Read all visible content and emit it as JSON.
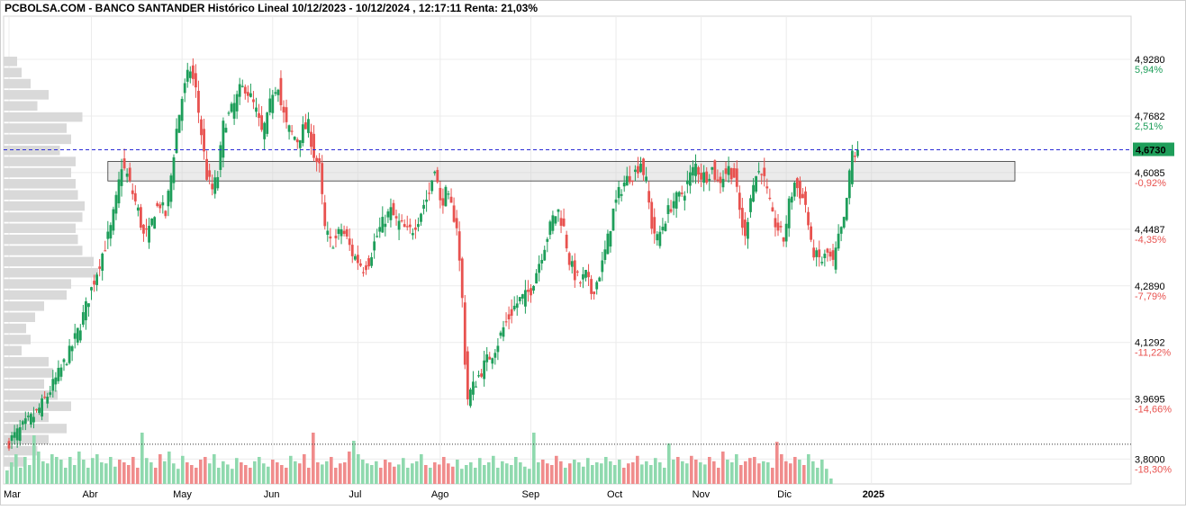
{
  "header": {
    "title": "PCBOLSA.COM - BANCO SANTANDER Histórico Lineal 10/12/2023 - 10/12/2024 , 12:17:11 Renta: 21,03%"
  },
  "colors": {
    "up": "#1e9e5a",
    "down": "#e8524f",
    "vol_up": "#8fd9ae",
    "vol_down": "#f08c8c",
    "profile": "#d9d9d9",
    "grid": "#ececec",
    "current_price_line": "#2a2ad6",
    "current_price_box": "#1e9e5a",
    "pct_up": "#1e9e5a",
    "pct_down": "#e8524f"
  },
  "chart_data": {
    "type": "candlestick",
    "x_axis": {
      "labels": [
        "Mar",
        "Abr",
        "May",
        "Jun",
        "Jul",
        "Ago",
        "Sep",
        "Oct",
        "Nov",
        "Dic",
        "2025"
      ]
    },
    "y_axis": {
      "range": [
        3.73,
        5.05
      ],
      "ticks": [
        {
          "value": 4.928,
          "label": "4,9280",
          "pct": "5,94%",
          "dir": "up"
        },
        {
          "value": 4.7682,
          "label": "4,7682",
          "pct": "2,51%",
          "dir": "up"
        },
        {
          "value": 4.6085,
          "label": "4,6085",
          "pct": "-0,92%",
          "dir": "down"
        },
        {
          "value": 4.4487,
          "label": "4,4487",
          "pct": "-4,35%",
          "dir": "down"
        },
        {
          "value": 4.289,
          "label": "4,2890",
          "pct": "-7,79%",
          "dir": "down"
        },
        {
          "value": 4.1292,
          "label": "4,1292",
          "pct": "-11,22%",
          "dir": "down"
        },
        {
          "value": 3.9695,
          "label": "3,9695",
          "pct": "-14,66%",
          "dir": "down"
        },
        {
          "value": 3.8,
          "label": "3,8000",
          "pct": "-18,30%",
          "dir": "down"
        }
      ]
    },
    "current_price": {
      "value": 4.673,
      "label": "4,6730"
    },
    "support_level": 3.842,
    "resistance_zone": [
      4.585,
      4.64
    ],
    "close_path": [
      [
        0,
        3.85
      ],
      [
        5,
        3.89
      ],
      [
        10,
        3.93
      ],
      [
        14,
        3.98
      ],
      [
        18,
        4.04
      ],
      [
        22,
        4.1
      ],
      [
        26,
        4.18
      ],
      [
        30,
        4.28
      ],
      [
        34,
        4.38
      ],
      [
        37,
        4.45
      ],
      [
        39,
        4.53
      ],
      [
        41,
        4.63
      ],
      [
        43,
        4.6
      ],
      [
        45,
        4.55
      ],
      [
        47,
        4.5
      ],
      [
        49,
        4.43
      ],
      [
        51,
        4.44
      ],
      [
        53,
        4.5
      ],
      [
        55,
        4.52
      ],
      [
        57,
        4.49
      ],
      [
        59,
        4.6
      ],
      [
        61,
        4.73
      ],
      [
        63,
        4.82
      ],
      [
        65,
        4.88
      ],
      [
        66,
        4.9
      ],
      [
        68,
        4.84
      ],
      [
        70,
        4.72
      ],
      [
        72,
        4.6
      ],
      [
        74,
        4.56
      ],
      [
        76,
        4.6
      ],
      [
        78,
        4.74
      ],
      [
        80,
        4.77
      ],
      [
        82,
        4.8
      ],
      [
        84,
        4.84
      ],
      [
        86,
        4.85
      ],
      [
        88,
        4.82
      ],
      [
        90,
        4.78
      ],
      [
        92,
        4.72
      ],
      [
        94,
        4.76
      ],
      [
        96,
        4.84
      ],
      [
        98,
        4.86
      ],
      [
        99,
        4.8
      ],
      [
        101,
        4.74
      ],
      [
        103,
        4.72
      ],
      [
        105,
        4.7
      ],
      [
        107,
        4.73
      ],
      [
        109,
        4.74
      ],
      [
        111,
        4.66
      ],
      [
        113,
        4.62
      ],
      [
        115,
        4.45
      ],
      [
        117,
        4.41
      ],
      [
        119,
        4.42
      ],
      [
        121,
        4.45
      ],
      [
        123,
        4.42
      ],
      [
        125,
        4.38
      ],
      [
        127,
        4.36
      ],
      [
        129,
        4.34
      ],
      [
        131,
        4.36
      ],
      [
        133,
        4.41
      ],
      [
        135,
        4.45
      ],
      [
        137,
        4.48
      ],
      [
        139,
        4.5
      ],
      [
        141,
        4.47
      ],
      [
        143,
        4.46
      ],
      [
        145,
        4.44
      ],
      [
        147,
        4.45
      ],
      [
        149,
        4.48
      ],
      [
        151,
        4.52
      ],
      [
        153,
        4.55
      ],
      [
        155,
        4.63
      ],
      [
        157,
        4.52
      ],
      [
        159,
        4.55
      ],
      [
        161,
        4.51
      ],
      [
        163,
        4.46
      ],
      [
        165,
        4.25
      ],
      [
        166,
        4.08
      ],
      [
        167,
        3.97
      ],
      [
        168,
        3.99
      ],
      [
        170,
        4.02
      ],
      [
        172,
        4.05
      ],
      [
        174,
        4.08
      ],
      [
        176,
        4.1
      ],
      [
        178,
        4.13
      ],
      [
        180,
        4.17
      ],
      [
        182,
        4.2
      ],
      [
        184,
        4.23
      ],
      [
        186,
        4.25
      ],
      [
        188,
        4.26
      ],
      [
        190,
        4.28
      ],
      [
        192,
        4.33
      ],
      [
        194,
        4.38
      ],
      [
        196,
        4.43
      ],
      [
        198,
        4.48
      ],
      [
        200,
        4.5
      ],
      [
        202,
        4.45
      ],
      [
        204,
        4.36
      ],
      [
        206,
        4.32
      ],
      [
        208,
        4.3
      ],
      [
        210,
        4.32
      ],
      [
        212,
        4.27
      ],
      [
        214,
        4.3
      ],
      [
        216,
        4.35
      ],
      [
        218,
        4.42
      ],
      [
        220,
        4.5
      ],
      [
        222,
        4.55
      ],
      [
        224,
        4.58
      ],
      [
        226,
        4.6
      ],
      [
        228,
        4.61
      ],
      [
        230,
        4.64
      ],
      [
        232,
        4.58
      ],
      [
        234,
        4.46
      ],
      [
        236,
        4.42
      ],
      [
        238,
        4.46
      ],
      [
        240,
        4.5
      ],
      [
        242,
        4.53
      ],
      [
        244,
        4.54
      ],
      [
        246,
        4.56
      ],
      [
        248,
        4.6
      ],
      [
        250,
        4.63
      ],
      [
        252,
        4.6
      ],
      [
        254,
        4.6
      ],
      [
        256,
        4.62
      ],
      [
        258,
        4.58
      ],
      [
        260,
        4.6
      ],
      [
        262,
        4.62
      ],
      [
        264,
        4.6
      ],
      [
        266,
        4.5
      ],
      [
        268,
        4.42
      ],
      [
        270,
        4.55
      ],
      [
        272,
        4.6
      ],
      [
        274,
        4.62
      ],
      [
        276,
        4.55
      ],
      [
        278,
        4.48
      ],
      [
        280,
        4.45
      ],
      [
        282,
        4.42
      ],
      [
        284,
        4.52
      ],
      [
        286,
        4.58
      ],
      [
        288,
        4.55
      ],
      [
        290,
        4.52
      ],
      [
        292,
        4.4
      ],
      [
        294,
        4.37
      ],
      [
        296,
        4.36
      ],
      [
        298,
        4.38
      ],
      [
        300,
        4.35
      ],
      [
        302,
        4.42
      ],
      [
        304,
        4.47
      ],
      [
        306,
        4.6
      ],
      [
        307,
        4.665
      ],
      [
        308,
        4.655
      ],
      [
        309,
        4.673
      ]
    ],
    "volume_profile": [
      0.06,
      0.08,
      0.12,
      0.2,
      0.15,
      0.35,
      0.28,
      0.3,
      0.25,
      0.32,
      0.3,
      0.32,
      0.33,
      0.36,
      0.35,
      0.32,
      0.33,
      0.35,
      0.4,
      0.42,
      0.3,
      0.28,
      0.18,
      0.14,
      0.1,
      0.12,
      0.08,
      0.2,
      0.22,
      0.18,
      0.24,
      0.3,
      0.2,
      0.28,
      0.2,
      0.15,
      0.1
    ]
  },
  "volume_bars": [
    0.25,
    0.4,
    0.55,
    0.3,
    0.5,
    0.35,
    0.9,
    0.6,
    0.42,
    0.38,
    0.55,
    0.5,
    0.45,
    0.3,
    0.5,
    0.35,
    0.6,
    0.45,
    0.3,
    0.48,
    0.55,
    0.4,
    0.38,
    0.5,
    0.32,
    0.45,
    0.4,
    0.35,
    0.5,
    0.3,
    0.95,
    0.48,
    0.4,
    0.3,
    0.55,
    0.42,
    0.6,
    0.38,
    0.28,
    0.52,
    0.4,
    0.35,
    0.3,
    0.45,
    0.5,
    0.38,
    0.55,
    0.3,
    0.42,
    0.36,
    0.28,
    0.48,
    0.4,
    0.35,
    0.3,
    0.42,
    0.5,
    0.38,
    0.32,
    0.45,
    0.4,
    0.35,
    0.3,
    0.52,
    0.42,
    0.38,
    0.55,
    0.3,
    0.95,
    0.4,
    0.36,
    0.42,
    0.5,
    0.3,
    0.38,
    0.4,
    0.6,
    0.8,
    0.55,
    0.45,
    0.38,
    0.35,
    0.42,
    0.3,
    0.45,
    0.4,
    0.32,
    0.36,
    0.48,
    0.3,
    0.38,
    0.42,
    0.55,
    0.35,
    0.3,
    0.4,
    0.36,
    0.5,
    0.38,
    0.32,
    0.45,
    0.28,
    0.35,
    0.4,
    0.3,
    0.48,
    0.35,
    0.4,
    0.52,
    0.3,
    0.42,
    0.38,
    0.35,
    0.5,
    0.4,
    0.32,
    0.28,
    0.95,
    0.4,
    0.45,
    0.38,
    0.35,
    0.52,
    0.42,
    0.3,
    0.38,
    0.45,
    0.4,
    0.32,
    0.48,
    0.35,
    0.4,
    0.38,
    0.5,
    0.42,
    0.35,
    0.45,
    0.3,
    0.38,
    0.4,
    0.52,
    0.36,
    0.42,
    0.35,
    0.48,
    0.4,
    0.3,
    0.75,
    0.45,
    0.5,
    0.42,
    0.38,
    0.52,
    0.45,
    0.4,
    0.36,
    0.5,
    0.42,
    0.3,
    0.6,
    0.45,
    0.4,
    0.55,
    0.35,
    0.42,
    0.48,
    0.5,
    0.38,
    0.42,
    0.4,
    0.3,
    0.78,
    0.55,
    0.42,
    0.38,
    0.5,
    0.45,
    0.35,
    0.55,
    0.42,
    0.3,
    0.45,
    0.28,
    0.1
  ],
  "month_positions": [
    0,
    30,
    63,
    96,
    127,
    157,
    190,
    221,
    252,
    283,
    314
  ]
}
